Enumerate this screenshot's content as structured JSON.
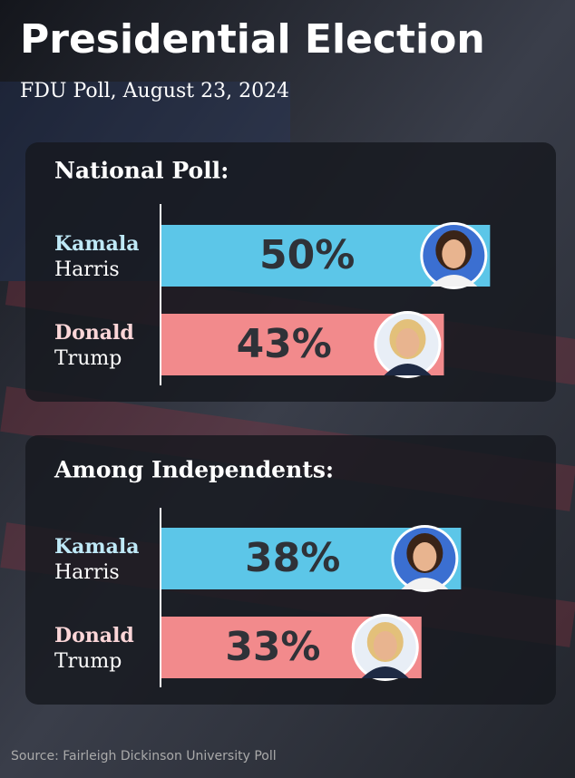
{
  "title": "Presidential Election",
  "subtitle": "FDU Poll, August 23, 2024",
  "source": "Source: Fairleigh Dickinson University Poll",
  "chart_data": [
    {
      "type": "bar",
      "orientation": "horizontal",
      "title": "National Poll:",
      "categories": [
        [
          "Kamala",
          "Harris"
        ],
        [
          "Donald",
          "Trump"
        ]
      ],
      "values": [
        50,
        43
      ],
      "value_labels": [
        "50%",
        "43%"
      ],
      "colors": [
        "#5cc6e8",
        "#f28a8c"
      ],
      "xlim": [
        0,
        60
      ]
    },
    {
      "type": "bar",
      "orientation": "horizontal",
      "title": "Among Independents:",
      "categories": [
        [
          "Kamala",
          "Harris"
        ],
        [
          "Donald",
          "Trump"
        ]
      ],
      "values": [
        38,
        33
      ],
      "value_labels": [
        "38%",
        "33%"
      ],
      "colors": [
        "#5cc6e8",
        "#f28a8c"
      ],
      "xlim": [
        0,
        50
      ]
    }
  ]
}
